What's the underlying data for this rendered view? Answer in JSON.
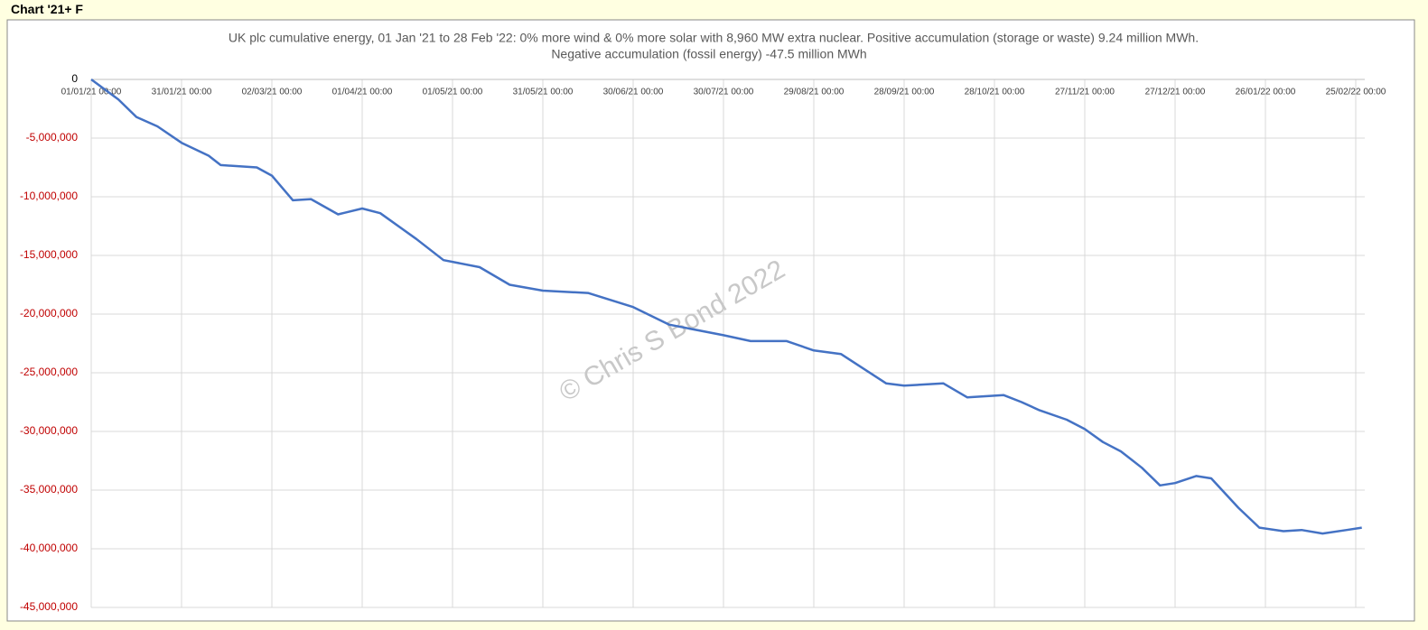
{
  "header": {
    "label": "Chart '21+ F"
  },
  "chart_data": {
    "type": "line",
    "title": "UK plc cumulative energy, 01 Jan '21 to 28 Feb '22: 0% more wind & 0% more solar with 8,960 MW extra nuclear.  Positive accumulation (storage or waste) 9.24 million MWh.",
    "subtitle": "Negative accumulation (fossil energy) -47.5 million MWh",
    "watermark": "© Chris S Bond  2022",
    "x": [
      "01/01/21 00:00",
      "10/01/21 00:00",
      "16/01/21 00:00",
      "23/01/21 00:00",
      "31/01/21 00:00",
      "09/02/21 00:00",
      "13/02/21 00:00",
      "25/02/21 00:00",
      "02/03/21 00:00",
      "09/03/21 00:00",
      "15/03/21 00:00",
      "24/03/21 00:00",
      "01/04/21 00:00",
      "07/04/21 00:00",
      "19/04/21 00:00",
      "28/04/21 00:00",
      "10/05/21 00:00",
      "20/05/21 00:00",
      "31/05/21 00:00",
      "15/06/21 00:00",
      "30/06/21 00:00",
      "12/07/21 00:00",
      "30/07/21 00:00",
      "08/08/21 00:00",
      "20/08/21 00:00",
      "29/08/21 00:00",
      "07/09/21 00:00",
      "22/09/21 00:00",
      "28/09/21 00:00",
      "11/10/21 00:00",
      "19/10/21 00:00",
      "31/10/21 00:00",
      "06/11/21 00:00",
      "12/11/21 00:00",
      "21/11/21 00:00",
      "27/11/21 00:00",
      "03/12/21 00:00",
      "09/12/21 00:00",
      "16/12/21 00:00",
      "22/12/21 00:00",
      "27/12/21 00:00",
      "03/01/22 00:00",
      "08/01/22 00:00",
      "17/01/22 00:00",
      "24/01/22 00:00",
      "01/02/22 00:00",
      "07/02/22 00:00",
      "14/02/22 00:00",
      "22/02/22 00:00",
      "27/02/22 00:00"
    ],
    "series": [
      {
        "name": "Cumulative energy",
        "color": "#4472c4",
        "values": [
          0,
          -1700000,
          -3200000,
          -4000000,
          -5400000,
          -6500000,
          -7300000,
          -7500000,
          -8200000,
          -10300000,
          -10200000,
          -11500000,
          -11000000,
          -11400000,
          -13600000,
          -15400000,
          -16000000,
          -17500000,
          -18000000,
          -18200000,
          -19400000,
          -20900000,
          -21800000,
          -22300000,
          -22300000,
          -23100000,
          -23400000,
          -25900000,
          -26100000,
          -25900000,
          -27100000,
          -26900000,
          -27500000,
          -28200000,
          -29000000,
          -29800000,
          -30900000,
          -31700000,
          -33100000,
          -34600000,
          -34400000,
          -33800000,
          -34000000,
          -36500000,
          -38200000,
          -38500000,
          -38400000,
          -38700000,
          -38400000,
          -38200000
        ]
      }
    ],
    "xlim": [
      "01/01/21 00:00",
      "28/02/22 00:00"
    ],
    "xticks": [
      "01/01/21 00:00",
      "31/01/21 00:00",
      "02/03/21 00:00",
      "01/04/21 00:00",
      "01/05/21 00:00",
      "31/05/21 00:00",
      "30/06/21 00:00",
      "30/07/21 00:00",
      "29/08/21 00:00",
      "28/09/21 00:00",
      "28/10/21 00:00",
      "27/11/21 00:00",
      "27/12/21 00:00",
      "26/01/22 00:00",
      "25/02/22 00:00"
    ],
    "ylim": [
      -45000000,
      0
    ],
    "yticks": [
      0,
      {
        "value": -5000000,
        "label": "-5,000,000"
      },
      {
        "value": -10000000,
        "label": "-10,000,000"
      },
      {
        "value": -15000000,
        "label": "-15,000,000"
      },
      {
        "value": -20000000,
        "label": "-20,000,000"
      },
      {
        "value": -25000000,
        "label": "-25,000,000"
      },
      {
        "value": -30000000,
        "label": "-30,000,000"
      },
      {
        "value": -35000000,
        "label": "-35,000,000"
      },
      {
        "value": -40000000,
        "label": "-40,000,000"
      },
      {
        "value": -45000000,
        "label": "-45,000,000"
      }
    ],
    "negative_label_color": "#c00000",
    "grid": true
  }
}
